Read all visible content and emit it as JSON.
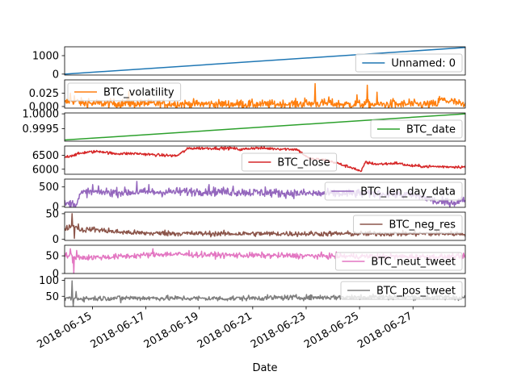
{
  "chart_data": {
    "type": "line",
    "xlabel": "Date",
    "x_range": [
      "2018-06-13T23:00",
      "2018-06-28T23:00"
    ],
    "x_ticks": [
      "2018-06-15",
      "2018-06-17",
      "2018-06-19",
      "2018-06-21",
      "2018-06-23",
      "2018-06-25",
      "2018-06-27"
    ],
    "grid": false,
    "panels": [
      {
        "name": "Unnamed: 0",
        "color": "#1f77b4",
        "legend_loc": "lower-right",
        "ylim": [
          -50,
          1480
        ],
        "yticks": [
          {
            "v": 0,
            "label": "0"
          },
          {
            "v": 1000,
            "label": "1000"
          }
        ],
        "kind": "linear",
        "start": 0,
        "end": 1440
      },
      {
        "name": "BTC_volatility",
        "color": "#ff7f0e",
        "legend_loc": "upper-left",
        "ylim": [
          -0.003,
          0.05
        ],
        "yticks": [
          {
            "v": 0.0,
            "label": "0.000"
          },
          {
            "v": 0.025,
            "label": "0.025"
          }
        ],
        "kind": "noisy",
        "base": 0.005,
        "noise": 0.004,
        "points": [
          [
            0,
            0.006
          ],
          [
            0.015,
            0.012
          ],
          [
            0.05,
            0.006
          ],
          [
            0.3,
            0.005
          ],
          [
            0.5,
            0.004
          ],
          [
            0.65,
            0.006
          ],
          [
            0.7,
            0.004
          ],
          [
            0.9,
            0.004
          ],
          [
            0.93,
            0.004
          ],
          [
            0.935,
            0.013
          ],
          [
            0.97,
            0.009
          ],
          [
            1.0,
            0.001
          ]
        ],
        "spikes": [
          [
            0.015,
            0.025
          ],
          [
            0.025,
            0.02
          ],
          [
            0.06,
            0.015
          ],
          [
            0.16,
            0.028
          ],
          [
            0.2,
            0.012
          ],
          [
            0.44,
            0.012
          ],
          [
            0.6,
            0.016
          ],
          [
            0.625,
            0.043
          ],
          [
            0.66,
            0.018
          ],
          [
            0.73,
            0.022
          ],
          [
            0.755,
            0.04
          ],
          [
            0.78,
            0.027
          ],
          [
            0.82,
            0.015
          ],
          [
            0.86,
            0.014
          ]
        ]
      },
      {
        "name": "BTC_date",
        "color": "#2ca02c",
        "legend_loc": "lower-right",
        "ylim": [
          0.99908,
          1.00003
        ],
        "yticks": [
          {
            "v": 0.9995,
            "label": "0.9995"
          },
          {
            "v": 1.0,
            "label": "1.0000"
          }
        ],
        "kind": "linear",
        "start": 0.99912,
        "end": 1.0
      },
      {
        "name": "BTC_close",
        "color": "#d62728",
        "legend_loc": "lower-center",
        "ylim": [
          5820,
          6830
        ],
        "yticks": [
          {
            "v": 6000,
            "label": "6000"
          },
          {
            "v": 6500,
            "label": "6500"
          }
        ],
        "kind": "noisy",
        "base": 6400,
        "noise": 25,
        "points": [
          [
            0,
            6430
          ],
          [
            0.02,
            6500
          ],
          [
            0.05,
            6600
          ],
          [
            0.09,
            6640
          ],
          [
            0.12,
            6560
          ],
          [
            0.18,
            6560
          ],
          [
            0.24,
            6500
          ],
          [
            0.28,
            6480
          ],
          [
            0.31,
            6750
          ],
          [
            0.42,
            6750
          ],
          [
            0.44,
            6700
          ],
          [
            0.47,
            6760
          ],
          [
            0.58,
            6710
          ],
          [
            0.61,
            6380
          ],
          [
            0.65,
            6330
          ],
          [
            0.68,
            6220
          ],
          [
            0.7,
            6120
          ],
          [
            0.72,
            6050
          ],
          [
            0.74,
            5900
          ],
          [
            0.75,
            6250
          ],
          [
            0.78,
            6180
          ],
          [
            0.81,
            6200
          ],
          [
            0.83,
            6220
          ],
          [
            0.86,
            6130
          ],
          [
            0.9,
            6100
          ],
          [
            1.0,
            6080
          ]
        ]
      },
      {
        "name": "BTC_len_day_data",
        "color": "#9467bd",
        "legend_loc": "upper-right",
        "ylim": [
          -20,
          700
        ],
        "yticks": [
          {
            "v": 0,
            "label": "0"
          },
          {
            "v": 500,
            "label": "500"
          }
        ],
        "kind": "noisy",
        "base": 360,
        "noise": 55,
        "points": [
          [
            0,
            60
          ],
          [
            0.03,
            80
          ],
          [
            0.04,
            320
          ],
          [
            0.055,
            370
          ],
          [
            0.2,
            360
          ],
          [
            0.35,
            390
          ],
          [
            0.55,
            340
          ],
          [
            0.65,
            330
          ],
          [
            0.8,
            330
          ],
          [
            0.88,
            270
          ],
          [
            0.9,
            230
          ],
          [
            0.93,
            110
          ],
          [
            0.98,
            110
          ],
          [
            1.0,
            200
          ]
        ],
        "spikes": [
          [
            0.07,
            560
          ],
          [
            0.18,
            640
          ],
          [
            0.21,
            560
          ],
          [
            0.36,
            560
          ],
          [
            0.42,
            520
          ],
          [
            0.5,
            500
          ]
        ]
      },
      {
        "name": "BTC_neg_res",
        "color": "#8c564b",
        "legend_loc": "upper-right",
        "ylim": [
          -2,
          53
        ],
        "yticks": [
          {
            "v": 0,
            "label": "0"
          },
          {
            "v": 50,
            "label": "50"
          }
        ],
        "kind": "noisy",
        "base": 11,
        "noise": 2.5,
        "points": [
          [
            0,
            20
          ],
          [
            0.02,
            28
          ],
          [
            0.04,
            18
          ],
          [
            0.07,
            20
          ],
          [
            0.12,
            15
          ],
          [
            0.2,
            12
          ],
          [
            0.4,
            11
          ],
          [
            0.7,
            11
          ],
          [
            0.9,
            11
          ],
          [
            1.0,
            11
          ]
        ],
        "spikes": [
          [
            0.018,
            50
          ],
          [
            0.025,
            2
          ],
          [
            0.035,
            30
          ],
          [
            0.11,
            22
          ],
          [
            0.25,
            18
          ]
        ]
      },
      {
        "name": "BTC_neut_tweet",
        "color": "#e377c2",
        "legend_loc": "lower-right",
        "ylim": [
          0,
          80
        ],
        "yticks": [
          {
            "v": 0,
            "label": "0"
          },
          {
            "v": 50,
            "label": "50"
          }
        ],
        "kind": "noisy",
        "base": 48,
        "noise": 4,
        "points": [
          [
            0,
            52
          ],
          [
            0.05,
            45
          ],
          [
            0.12,
            47
          ],
          [
            0.2,
            52
          ],
          [
            0.25,
            55
          ],
          [
            0.4,
            52
          ],
          [
            0.6,
            50
          ],
          [
            0.8,
            48
          ],
          [
            1.0,
            47
          ]
        ],
        "spikes": [
          [
            0.015,
            70
          ],
          [
            0.02,
            30
          ],
          [
            0.023,
            0
          ],
          [
            0.03,
            65
          ],
          [
            0.22,
            70
          ],
          [
            0.31,
            65
          ]
        ]
      },
      {
        "name": "BTC_pos_tweet",
        "color": "#7f7f7f",
        "legend_loc": "upper-right",
        "ylim": [
          18,
          106
        ],
        "yticks": [
          {
            "v": 50,
            "label": "50"
          },
          {
            "v": 100,
            "label": "100"
          }
        ],
        "kind": "noisy",
        "base": 44,
        "noise": 4,
        "points": [
          [
            0,
            44
          ],
          [
            0.05,
            43
          ],
          [
            0.15,
            45
          ],
          [
            0.25,
            44
          ],
          [
            0.4,
            43
          ],
          [
            0.55,
            46
          ],
          [
            0.7,
            47
          ],
          [
            0.85,
            48
          ],
          [
            1.0,
            46
          ]
        ],
        "spikes": [
          [
            0.018,
            98
          ],
          [
            0.022,
            20
          ],
          [
            0.028,
            65
          ],
          [
            0.14,
            30
          ],
          [
            0.74,
            55
          ],
          [
            0.77,
            57
          ]
        ]
      }
    ]
  }
}
